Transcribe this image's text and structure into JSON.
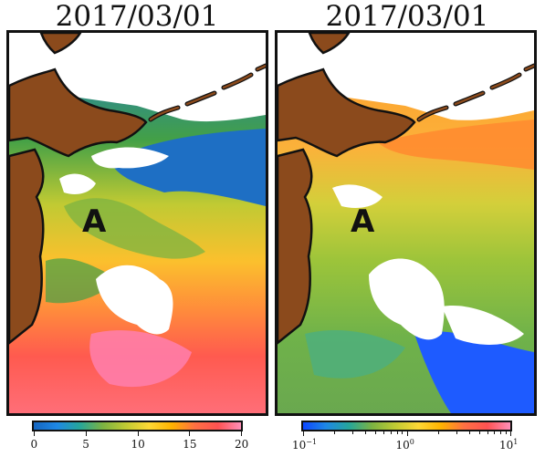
{
  "left_panel": {
    "title": "2017/03/01",
    "marker": "A",
    "colorbar": {
      "ticks": [
        "0",
        "5",
        "10",
        "15",
        "20"
      ],
      "colors": [
        "#1565c0",
        "#1e88e5",
        "#26a69a",
        "#7cb342",
        "#c0ca33",
        "#fdd835",
        "#ffb300",
        "#ff7043",
        "#ff5252",
        "#ff8fb8"
      ]
    }
  },
  "right_panel": {
    "title": "2017/03/01",
    "marker": "A",
    "colorbar": {
      "ticks": [
        {
          "base": "10",
          "exp": "−1"
        },
        {
          "base": "10",
          "exp": "0"
        },
        {
          "base": "10",
          "exp": "1"
        }
      ],
      "colors": [
        "#0d47ff",
        "#1e88e5",
        "#26a69a",
        "#7cb342",
        "#c0ca33",
        "#fdd835",
        "#ffb300",
        "#ff7043",
        "#ff5252",
        "#ff8fb8"
      ]
    }
  },
  "colors": {
    "land": "#8b4a1c",
    "land_outline": "#111111",
    "missing": "#ffffff"
  }
}
